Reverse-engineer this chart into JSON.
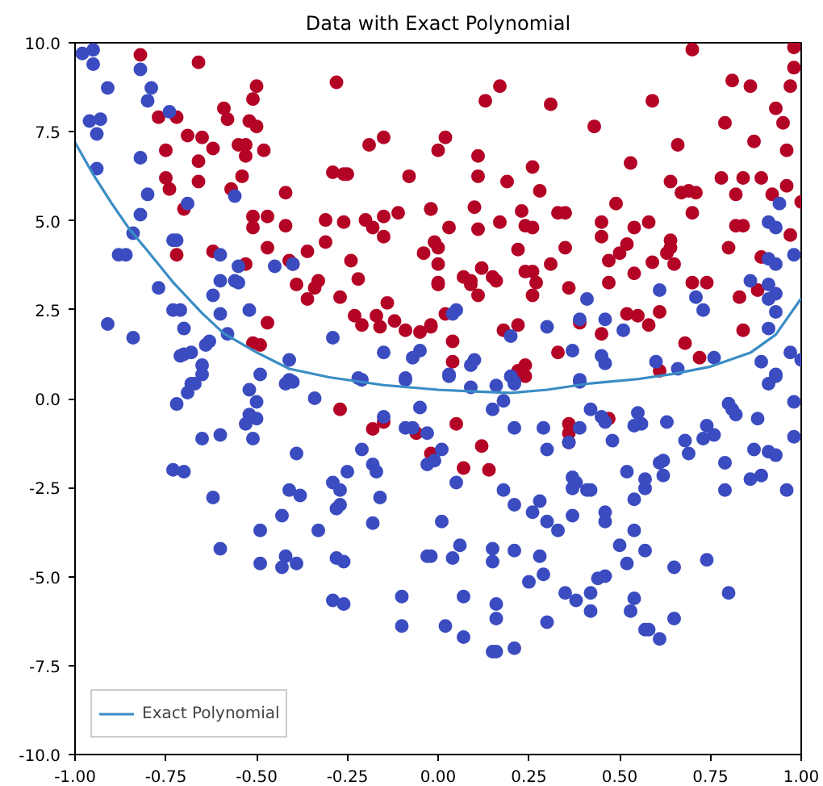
{
  "chart_data": {
    "type": "scatter",
    "title": "Data with Exact Polynomial",
    "grid": false,
    "legend": "bottom left",
    "xlim": [
      -1,
      1
    ],
    "ylim": [
      -10,
      10
    ],
    "xticks": [
      {
        "value": -1,
        "label": "-1.00"
      },
      {
        "value": -0.75,
        "label": "-0.75"
      },
      {
        "value": -0.5,
        "label": "-0.50"
      },
      {
        "value": -0.25,
        "label": "-0.25"
      },
      {
        "value": 0,
        "label": "0.00"
      },
      {
        "value": 0.25,
        "label": "0.25"
      },
      {
        "value": 0.5,
        "label": "0.50"
      },
      {
        "value": 0.75,
        "label": "0.75"
      },
      {
        "value": 1,
        "label": "1.00"
      }
    ],
    "yticks": [
      {
        "value": -10,
        "label": "-10.0"
      },
      {
        "value": -7.5,
        "label": "-7.5"
      },
      {
        "value": -5,
        "label": "-5.0"
      },
      {
        "value": -2.5,
        "label": "-2.5"
      },
      {
        "value": 0,
        "label": "0.0"
      },
      {
        "value": 2.5,
        "label": "2.5"
      },
      {
        "value": 5,
        "label": "5.0"
      },
      {
        "value": 7.5,
        "label": "7.5"
      },
      {
        "value": 10,
        "label": "10.0"
      }
    ],
    "series": [
      {
        "marker": "circle",
        "color": "#b40426",
        "x": [
          -0.27,
          -0.18,
          -0.15,
          -0.06,
          -0.02,
          0.05,
          0.12,
          0.07,
          0.14,
          0.36,
          0.36,
          0.36,
          0.47,
          0.24,
          0.7,
          0.98,
          0.98,
          0.97,
          0.81,
          0.86,
          0.93,
          0.95,
          0.79,
          0.87,
          0.96,
          0.59,
          0.66,
          0.43,
          0.31,
          0.17,
          0.13,
          0.02,
          0.0,
          0.11,
          0.11,
          0.19,
          0.26,
          0.28,
          0.53,
          0.64,
          0.67,
          0.69,
          0.71,
          0.78,
          0.84,
          0.89,
          0.82,
          0.92,
          0.96,
          1.0,
          0.97,
          0.82,
          0.84,
          0.8,
          0.89,
          -0.02,
          0.1,
          0.0,
          0.0,
          0.03,
          0.11,
          0.17,
          0.23,
          0.24,
          0.26,
          0.33,
          0.35,
          0.22,
          0.35,
          0.45,
          0.45,
          0.49,
          0.54,
          0.58,
          0.52,
          0.5,
          0.47,
          0.59,
          0.64,
          0.64,
          0.63,
          0.65,
          0.7,
          0.0,
          0.07,
          0.09,
          0.09,
          0.12,
          0.11,
          0.15,
          0.16,
          0.24,
          0.26,
          0.31,
          0.27,
          0.26,
          0.36,
          0.47,
          0.54,
          0.7,
          0.74,
          0.83,
          0.88,
          -0.02,
          0.02,
          0.04,
          0.04,
          0.18,
          0.22,
          0.22,
          0.24,
          0.33,
          0.45,
          0.52,
          0.55,
          0.58,
          0.61,
          0.68,
          0.72,
          0.84,
          0.61,
          0.39,
          -0.82,
          -0.66,
          -0.5,
          -0.51,
          -0.28,
          -0.59,
          -0.58,
          -0.77,
          -0.72,
          -0.69,
          -0.65,
          -0.62,
          -0.52,
          -0.5,
          -0.55,
          -0.53,
          -0.53,
          -0.48,
          -0.75,
          -0.66,
          -0.66,
          -0.75,
          -0.74,
          -0.54,
          -0.57,
          -0.7,
          -0.51,
          -0.51,
          -0.47,
          -0.42,
          -0.42,
          -0.47,
          -0.41,
          -0.4,
          -0.31,
          -0.26,
          -0.2,
          -0.18,
          -0.15,
          -0.11,
          -0.15,
          -0.08,
          -0.29,
          -0.26,
          -0.25,
          -0.19,
          -0.15,
          -0.02,
          -0.01,
          -0.31,
          -0.36,
          -0.24,
          -0.22,
          -0.53,
          -0.62,
          -0.72,
          -0.39,
          -0.33,
          -0.34,
          -0.36,
          -0.27,
          -0.23,
          -0.21,
          -0.17,
          -0.16,
          -0.14,
          -0.12,
          -0.09,
          -0.05,
          -0.02,
          -0.04,
          0.0,
          -0.47,
          -0.51,
          -0.49
        ],
        "values": [
          -0.3,
          -0.85,
          -0.66,
          -0.97,
          -1.54,
          -0.71,
          -1.33,
          -1.95,
          -2.0,
          -0.71,
          -0.97,
          -1.23,
          -0.56,
          0.63,
          9.81,
          9.87,
          9.3,
          8.78,
          8.94,
          8.78,
          8.16,
          7.75,
          7.75,
          7.23,
          6.98,
          8.37,
          7.13,
          7.65,
          8.27,
          8.78,
          8.37,
          7.34,
          6.98,
          6.82,
          6.25,
          6.1,
          6.51,
          5.84,
          6.62,
          6.1,
          5.79,
          5.84,
          5.79,
          6.2,
          6.2,
          6.2,
          5.74,
          5.74,
          5.98,
          5.53,
          4.6,
          4.86,
          4.86,
          4.24,
          3.98,
          5.33,
          5.38,
          4.24,
          3.78,
          4.81,
          4.76,
          4.96,
          5.27,
          4.86,
          4.81,
          5.22,
          5.22,
          4.19,
          4.24,
          4.96,
          4.55,
          5.48,
          4.81,
          4.96,
          4.34,
          4.09,
          3.88,
          3.83,
          4.45,
          4.24,
          4.09,
          3.78,
          5.22,
          3.21,
          3.42,
          3.31,
          3.21,
          3.67,
          2.9,
          3.42,
          3.31,
          3.57,
          3.57,
          3.78,
          3.26,
          2.9,
          3.11,
          3.26,
          3.52,
          3.26,
          3.26,
          2.85,
          3.05,
          2.07,
          2.38,
          1.61,
          1.04,
          1.92,
          2.07,
          0.78,
          0.94,
          1.3,
          1.82,
          2.38,
          2.33,
          2.07,
          2.44,
          1.56,
          1.15,
          1.92,
          0.78,
          2.13,
          9.66,
          9.45,
          8.78,
          8.42,
          8.89,
          8.16,
          7.85,
          7.91,
          7.91,
          7.39,
          7.34,
          7.03,
          7.8,
          7.65,
          7.13,
          7.13,
          6.82,
          6.98,
          6.98,
          6.67,
          6.1,
          6.2,
          5.89,
          6.25,
          5.89,
          5.33,
          5.12,
          4.81,
          5.12,
          5.79,
          4.86,
          4.24,
          3.88,
          3.78,
          5.02,
          4.96,
          5.02,
          4.81,
          5.12,
          5.22,
          4.55,
          6.25,
          6.36,
          6.31,
          6.31,
          7.13,
          7.34,
          5.33,
          4.4,
          4.4,
          4.14,
          3.88,
          3.36,
          3.78,
          4.14,
          4.04,
          3.21,
          3.31,
          3.11,
          2.8,
          2.85,
          2.33,
          2.07,
          2.33,
          2.02,
          2.69,
          2.18,
          1.92,
          1.87,
          2.02,
          4.09,
          3.26,
          2.13,
          1.56,
          1.51
        ]
      },
      {
        "marker": "circle",
        "color": "#3b4cc0",
        "x": [
          -0.72,
          -0.69,
          -0.67,
          -0.65,
          -0.6,
          -0.73,
          -0.7,
          -0.62,
          -0.6,
          -0.52,
          -0.5,
          -0.53,
          -0.52,
          -0.5,
          -0.51,
          -0.39,
          -0.41,
          -0.38,
          -0.43,
          -0.49,
          -0.49,
          -0.43,
          -0.42,
          -0.39,
          -0.34,
          -0.42,
          -0.29,
          -0.27,
          -0.27,
          -0.28,
          -0.25,
          -0.33,
          -0.28,
          -0.26,
          -0.29,
          -0.26,
          -0.21,
          -0.18,
          -0.17,
          -0.16,
          -0.18,
          -0.15,
          -0.09,
          -0.07,
          -0.05,
          -0.03,
          -0.03,
          -0.03,
          -0.1,
          -0.1,
          -0.21,
          -0.09,
          0.03,
          0.09,
          0.16,
          0.21,
          0.39,
          0.15,
          0.18,
          0.21,
          0.29,
          0.3,
          0.01,
          -0.01,
          0.05,
          0.01,
          -0.02,
          0.04,
          0.06,
          0.07,
          0.02,
          0.07,
          0.15,
          0.16,
          0.21,
          0.16,
          0.16,
          0.3,
          0.15,
          0.15,
          0.21,
          0.25,
          0.29,
          0.28,
          0.18,
          0.21,
          0.26,
          0.28,
          0.3,
          0.33,
          0.37,
          0.35,
          0.38,
          0.42,
          0.42,
          0.44,
          0.46,
          0.37,
          0.38,
          0.37,
          0.41,
          0.42,
          0.46,
          0.46,
          0.36,
          0.39,
          0.42,
          0.45,
          0.46,
          0.48,
          0.5,
          0.52,
          0.53,
          0.54,
          0.57,
          0.58,
          0.61,
          0.65,
          0.65,
          0.54,
          0.57,
          0.54,
          0.52,
          0.57,
          0.57,
          0.61,
          0.62,
          0.62,
          0.54,
          0.56,
          0.55,
          0.63,
          0.68,
          0.69,
          0.74,
          0.8,
          0.79,
          0.79,
          0.73,
          0.74,
          0.76,
          0.8,
          0.81,
          0.82,
          0.86,
          0.89,
          0.87,
          0.91,
          0.93,
          0.88,
          0.91,
          0.93,
          0.96,
          0.98,
          0.98,
          0.94,
          0.91,
          0.93,
          0.98,
          0.91,
          0.93,
          0.86,
          0.91,
          0.93,
          0.91,
          0.93,
          0.91,
          0.97,
          1.0,
          0.89,
          0.93,
          0.61,
          0.71,
          0.73,
          0.76,
          0.66,
          0.6,
          0.41,
          0.46,
          0.51,
          0.39,
          0.3,
          0.37,
          0.45,
          0.46,
          0.05,
          0.04,
          0.2,
          0.1,
          0.09,
          0.03,
          0.2,
          0.21,
          0.39,
          -0.98,
          -0.95,
          -0.95,
          -0.82,
          -0.91,
          -0.79,
          -0.8,
          -0.96,
          -0.93,
          -0.94,
          -0.94,
          -0.82,
          -0.74,
          -0.8,
          -0.82,
          -0.84,
          -0.88,
          -0.86,
          -0.73,
          -0.72,
          -0.69,
          -0.56,
          -0.77,
          -0.73,
          -0.71,
          -0.7,
          -0.84,
          -0.71,
          -0.7,
          -0.68,
          -0.65,
          -0.65,
          -0.64,
          -0.63,
          -0.6,
          -0.62,
          -0.6,
          -0.56,
          -0.55,
          -0.6,
          -0.55,
          -0.52,
          -0.58,
          -0.45,
          -0.4,
          -0.29,
          -0.41,
          -0.41,
          -0.4,
          -0.49,
          -0.15,
          -0.07,
          -0.05,
          -0.09,
          -0.22,
          -0.68,
          -0.91
        ],
        "values": [
          -0.15,
          0.17,
          0.42,
          -1.12,
          -1.02,
          -2.0,
          -2.05,
          -2.78,
          -4.22,
          0.25,
          -0.09,
          -0.71,
          -0.45,
          -0.56,
          -1.12,
          -1.54,
          -2.57,
          -2.72,
          -3.29,
          -3.7,
          -4.63,
          -4.74,
          -4.43,
          -4.63,
          0.01,
          0.42,
          -2.36,
          -2.57,
          -2.98,
          -3.09,
          -2.05,
          -3.7,
          -4.48,
          -4.58,
          -5.67,
          -5.77,
          -1.43,
          -1.85,
          -2.05,
          -2.78,
          -3.5,
          -0.51,
          -0.82,
          -0.82,
          -0.25,
          -0.97,
          -1.85,
          -4.43,
          -5.56,
          -6.39,
          0.53,
          0.53,
          0.63,
          0.32,
          0.37,
          0.42,
          0.47,
          -0.3,
          -0.06,
          -0.82,
          -0.82,
          -1.43,
          -1.43,
          -1.74,
          -2.36,
          -3.45,
          -4.43,
          -4.48,
          -4.12,
          -5.56,
          -6.39,
          -6.7,
          -7.11,
          -7.11,
          -7.01,
          -5.77,
          -6.18,
          -6.28,
          -4.22,
          -4.58,
          -4.27,
          -5.15,
          -4.94,
          -4.43,
          -2.57,
          -2.98,
          -3.19,
          -2.88,
          -3.45,
          -3.7,
          -3.29,
          -5.46,
          -5.67,
          -5.46,
          -5.97,
          -5.05,
          -4.99,
          -2.21,
          -2.36,
          -2.52,
          -2.57,
          -2.57,
          -3.19,
          -3.45,
          -1.23,
          -0.82,
          -0.3,
          -0.51,
          -0.66,
          -1.18,
          -4.12,
          -4.63,
          -5.97,
          -5.61,
          -6.49,
          -6.49,
          -6.75,
          -6.18,
          -4.74,
          -3.7,
          -4.27,
          -2.83,
          -2.05,
          -2.26,
          -2.52,
          -1.8,
          -1.74,
          -2.16,
          -0.76,
          -0.71,
          -0.4,
          -0.66,
          -1.18,
          -1.54,
          -4.53,
          -5.46,
          -2.57,
          -1.8,
          -1.12,
          -0.76,
          -1.02,
          -0.14,
          -0.3,
          -0.45,
          -2.26,
          -2.16,
          -1.43,
          -1.49,
          -1.59,
          -0.56,
          0.42,
          0.68,
          -2.57,
          -0.09,
          -1.07,
          5.48,
          4.96,
          4.81,
          4.04,
          3.93,
          3.78,
          3.31,
          3.21,
          2.95,
          2.8,
          2.44,
          1.97,
          1.3,
          1.09,
          1.04,
          0.63,
          3.05,
          2.85,
          2.49,
          1.15,
          0.84,
          1.04,
          2.8,
          2.23,
          1.92,
          2.23,
          2.02,
          1.35,
          1.2,
          0.99,
          2.49,
          2.38,
          1.76,
          1.09,
          0.94,
          0.68,
          0.63,
          0.47,
          0.53,
          9.7,
          9.8,
          9.4,
          9.25,
          8.73,
          8.73,
          8.37,
          7.8,
          7.85,
          7.44,
          6.46,
          6.77,
          8.06,
          5.74,
          5.17,
          4.65,
          4.04,
          4.04,
          4.45,
          4.45,
          5.48,
          5.69,
          3.11,
          2.49,
          2.49,
          1.97,
          1.71,
          1.2,
          1.25,
          1.3,
          0.94,
          0.68,
          1.51,
          1.61,
          2.38,
          2.9,
          3.31,
          3.31,
          3.26,
          4.04,
          3.72,
          2.49,
          1.82,
          3.72,
          3.78,
          1.71,
          1.09,
          0.53,
          0.47,
          0.68,
          1.3,
          1.15,
          1.35,
          0.58,
          0.58,
          0.42,
          2.1
        ]
      },
      {
        "type": "line",
        "name": "Exact Polynomial",
        "color": "#3a8cc4",
        "x": [
          -1,
          -0.95,
          -0.9,
          -0.85,
          -0.8,
          -0.73,
          -0.65,
          -0.59,
          -0.5,
          -0.41,
          -0.3,
          -0.15,
          0,
          0.1,
          0.2,
          0.3,
          0.42,
          0.55,
          0.65,
          0.75,
          0.86,
          0.93,
          1.0
        ],
        "values": [
          7.2,
          6.3,
          5.5,
          4.76,
          4.15,
          3.27,
          2.4,
          1.83,
          1.3,
          0.84,
          0.6,
          0.38,
          0.25,
          0.2,
          0.16,
          0.25,
          0.43,
          0.55,
          0.7,
          0.9,
          1.29,
          1.8,
          2.82
        ]
      }
    ]
  }
}
